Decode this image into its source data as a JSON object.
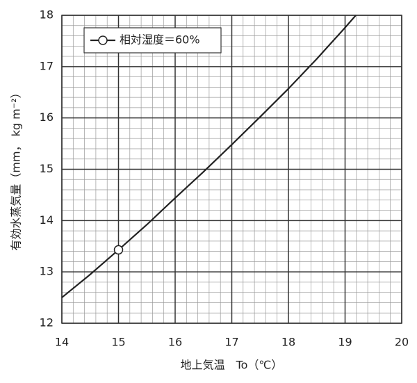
{
  "chart_data": {
    "type": "line",
    "xlabel": "地上気温　To（℃）",
    "ylabel": "有効水蒸気量（mm， kg m⁻²）",
    "x": [
      14,
      14.5,
      15,
      15.5,
      16,
      16.5,
      17,
      17.5,
      18,
      18.5,
      19,
      19.19
    ],
    "series": [
      {
        "name": "相対湿度＝60%",
        "color": "#222222",
        "values": [
          12.5,
          12.95,
          13.43,
          13.92,
          14.44,
          14.95,
          15.48,
          16.02,
          16.57,
          17.15,
          17.76,
          18.0
        ],
        "markers": [
          {
            "x": 15,
            "y": 13.43
          }
        ]
      }
    ],
    "xlim": [
      14,
      20
    ],
    "xticks": [
      14,
      15,
      16,
      17,
      18,
      19,
      20
    ],
    "ylim": [
      12,
      18
    ],
    "yticks": [
      12,
      13,
      14,
      15,
      16,
      17,
      18
    ],
    "grid": true,
    "minor_grid": 5,
    "legend": "upper left"
  }
}
